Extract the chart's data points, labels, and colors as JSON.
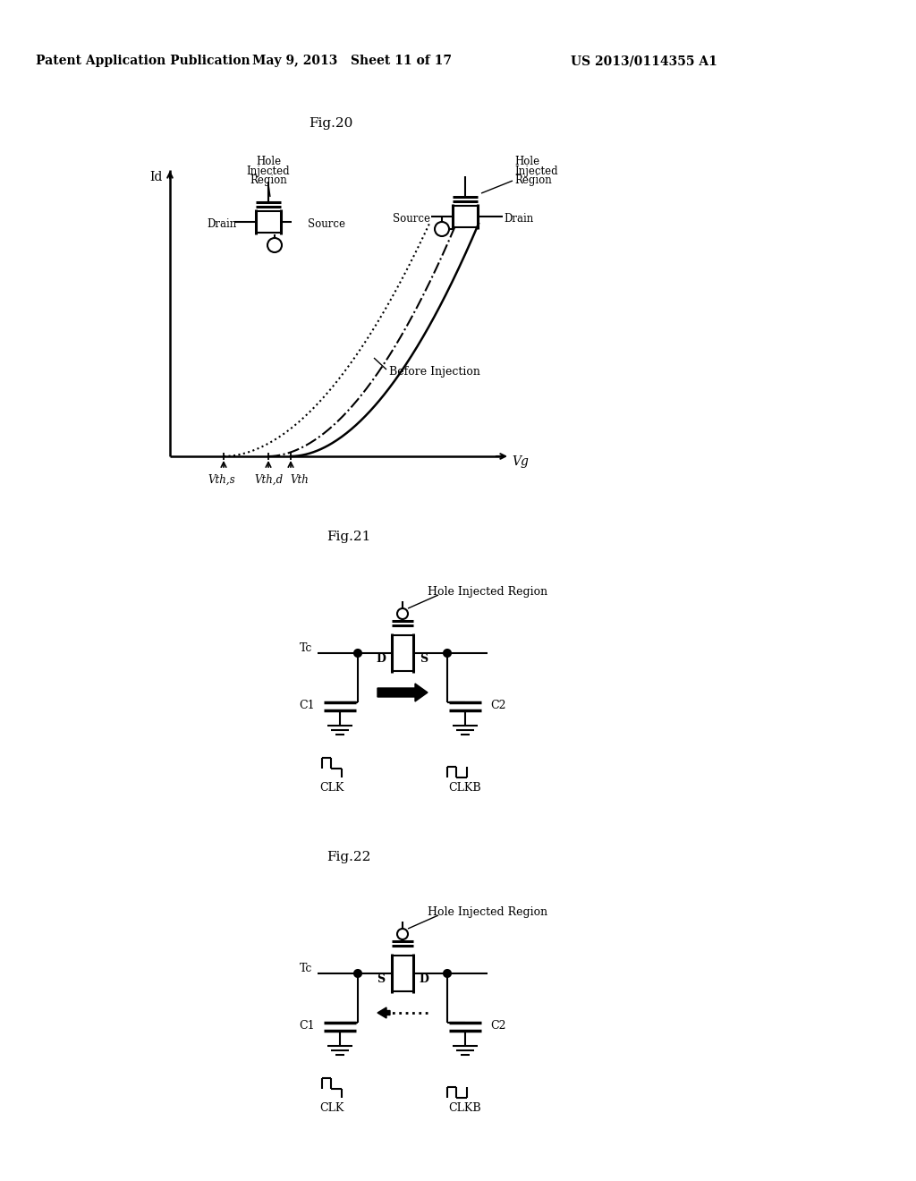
{
  "title_text": "Patent Application Publication",
  "title_date": "May 9, 2013",
  "title_sheet": "Sheet 11 of 17",
  "title_patent": "US 2013/0114355 A1",
  "bg_color": "#ffffff",
  "fig20_title": "Fig.20",
  "fig21_title": "Fig.21",
  "fig22_title": "Fig.22"
}
